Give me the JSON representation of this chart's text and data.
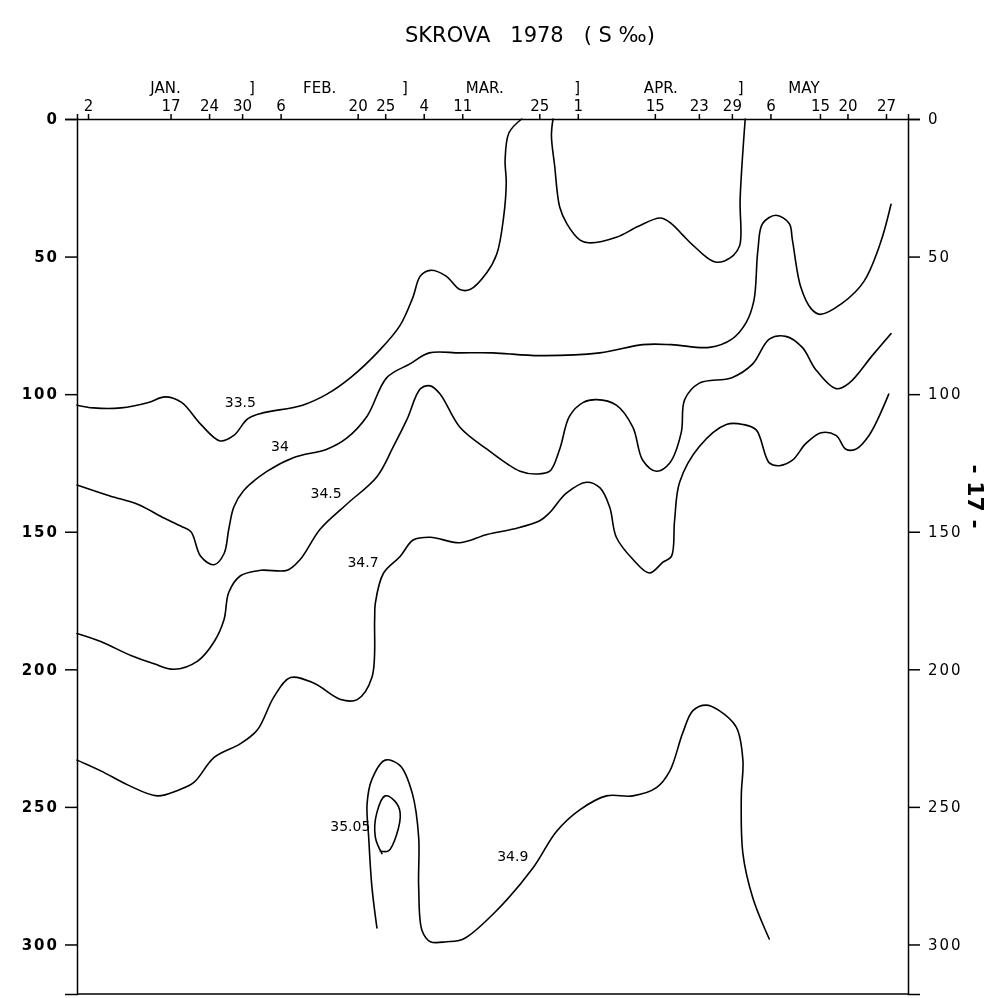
{
  "chart_data": {
    "type": "line",
    "title": "SKROVA   1978   ( S ‰)",
    "xlim": [
      "1977-12-31",
      "1978-05-31"
    ],
    "xticks": [
      {
        "value": "1978-01-02",
        "label": "2"
      },
      {
        "value": "1978-01-17",
        "label": "17"
      },
      {
        "value": "1978-01-24",
        "label": "24"
      },
      {
        "value": "1978-01-30",
        "label": "30"
      },
      {
        "value": "1978-02-06",
        "label": "6"
      },
      {
        "value": "1978-02-20",
        "label": "20"
      },
      {
        "value": "1978-02-25",
        "label": "25"
      },
      {
        "value": "1978-03-04",
        "label": "4"
      },
      {
        "value": "1978-03-11",
        "label": "11"
      },
      {
        "value": "1978-03-25",
        "label": "25"
      },
      {
        "value": "1978-04-01",
        "label": "1"
      },
      {
        "value": "1978-04-15",
        "label": "15"
      },
      {
        "value": "1978-04-23",
        "label": "23"
      },
      {
        "value": "1978-04-29",
        "label": "29"
      },
      {
        "value": "1978-05-06",
        "label": "6"
      },
      {
        "value": "1978-05-15",
        "label": "15"
      },
      {
        "value": "1978-05-20",
        "label": "20"
      },
      {
        "value": "1978-05-27",
        "label": "27"
      }
    ],
    "x2lim": [
      "1977-12-31",
      "1978-05-31"
    ],
    "x2ticks": [
      {
        "value": "1978-01-16",
        "label": "JAN."
      },
      {
        "value": "1978-01-31T17:00",
        "label": "]"
      },
      {
        "value": "1978-02-13",
        "label": "FEB."
      },
      {
        "value": "1978-02-28T12:00",
        "label": "]"
      },
      {
        "value": "1978-03-15",
        "label": "MAR."
      },
      {
        "value": "1978-03-31T19:00",
        "label": "]"
      },
      {
        "value": "1978-04-16",
        "label": "APR."
      },
      {
        "value": "1978-04-30T12:00",
        "label": "]"
      },
      {
        "value": "1978-05-12",
        "label": "MAY"
      }
    ],
    "ylim": [
      318,
      0
    ],
    "yticks": [
      0,
      50,
      100,
      150,
      200,
      250,
      300
    ],
    "y2lim": [
      318,
      0
    ],
    "y2ticks": [
      0,
      50,
      100,
      150,
      200,
      250,
      300
    ],
    "series": [
      {
        "color": "#000000",
        "x": [
          "1977-12-31",
          "1978-01-03",
          "1978-01-08",
          "1978-01-13",
          "1978-01-16",
          "1978-01-19",
          "1978-01-22T12:00",
          "1978-01-26",
          "1978-01-28T12:00",
          "1978-01-31",
          "1978-02-02T10:00",
          "1978-02-10",
          "1978-02-14T10:00",
          "1978-02-18T17:00",
          "1978-02-24",
          "1978-02-27T17:00",
          "1978-03-02",
          "1978-03-03T10:00",
          "1978-03-05T05:00",
          "1978-03-08",
          "1978-03-10T14:00",
          "1978-03-12T10:00",
          "1978-03-15T10:00",
          "1978-03-17T07:00",
          "1978-03-18T12:00",
          "1978-03-19",
          "1978-03-18T19:00",
          "1978-03-19T12:00",
          "1978-03-21T19:00"
        ],
        "values": [
          104,
          105,
          105,
          103,
          101,
          103,
          111,
          117,
          115,
          109,
          107,
          104,
          100,
          94,
          84,
          75,
          65,
          57,
          55,
          57,
          62,
          62,
          56,
          49,
          36,
          23,
          15,
          5,
          0
        ]
      },
      {
        "color": "#000000",
        "x": [
          "1978-03-27T12:00",
          "1978-03-27T05:00",
          "1978-03-27T19:00",
          "1978-03-28T17:00",
          "1978-03-30",
          "1978-04-01T10:00",
          "1978-04-03",
          "1978-04-08",
          "1978-04-12",
          "1978-04-16",
          "1978-04-18",
          "1978-04-20",
          "1978-04-22",
          "1978-04-26",
          "1978-04-29",
          "1978-04-30T10:00",
          "1978-04-30T12:00",
          "1978-05-01T10:00"
        ],
        "values": [
          0,
          6,
          17,
          32,
          38,
          44,
          45,
          43,
          39,
          36,
          38,
          42,
          46,
          52,
          50,
          46,
          29,
          0
        ]
      },
      {
        "color": "#000000",
        "x": [
          "1977-12-31",
          "1978-01-06",
          "1978-01-11",
          "1978-01-15T19:00",
          "1978-01-18T22:00",
          "1978-01-20T17:00",
          "1978-01-22T12:00",
          "1978-01-24T22:00",
          "1978-01-26T17:00",
          "1978-01-27T14:00",
          "1978-01-28T12:00",
          "1978-01-30T07:00",
          "1978-02-03T14:00",
          "1978-02-08T10:00",
          "1978-02-14T10:00",
          "1978-02-18",
          "1978-02-21T17:00",
          "1978-02-25T07:00",
          "1978-03-01T12:00",
          "1978-03-05",
          "1978-03-10T14:00",
          "1978-03-16T14:00",
          "1978-03-25",
          "1978-04-05",
          "1978-04-12T19:00",
          "1978-04-18",
          "1978-04-24T22:00",
          "1978-04-29",
          "1978-05-01T14:00",
          "1978-05-03",
          "1978-05-03T17:00",
          "1978-05-04T14:00",
          "1978-05-07",
          "1978-05-09T10:00",
          "1978-05-10",
          "1978-05-11T12:00",
          "1978-05-13T10:00",
          "1978-05-15",
          "1978-05-19",
          "1978-05-23",
          "1978-05-26",
          "1978-05-27T22:00"
        ],
        "values": [
          133,
          137,
          140,
          145,
          148,
          150,
          159,
          162,
          158,
          149,
          141,
          135,
          128,
          123,
          120,
          116,
          108,
          94,
          89,
          85,
          85,
          85,
          86,
          85,
          82,
          82,
          83,
          80,
          74,
          66,
          48,
          38,
          35,
          38,
          44,
          61,
          69,
          71,
          67,
          59,
          45,
          31
        ]
      },
      {
        "color": "#000000",
        "x": [
          "1977-12-31",
          "1978-01-04T10:00",
          "1978-01-09T19:00",
          "1978-01-14",
          "1978-01-17T14:00",
          "1978-01-21T22:00",
          "1978-01-24T22:00",
          "1978-01-26T17:00",
          "1978-01-27T14:00",
          "1978-01-29T17:00",
          "1978-02-02T10:00",
          "1978-02-07T05:00",
          "1978-02-09T14:00",
          "1978-02-13T05:00",
          "1978-02-18",
          "1978-02-23T12:00",
          "1978-02-26T12:00",
          "1978-03-01",
          "1978-03-03T10:00",
          "1978-03-05T05:00",
          "1978-03-07",
          "1978-03-10T14:00",
          "1978-03-15T12:00",
          "1978-03-21T12:00",
          "1978-03-24T12:00",
          "1978-03-26T22:00",
          "1978-03-28T17:00",
          "1978-03-30T12:00",
          "1978-04-02",
          "1978-04-04T10:00",
          "1978-04-08",
          "1978-04-11",
          "1978-04-12T19:00",
          "1978-04-15T07:00",
          "1978-04-17T17:00",
          "1978-04-19T19:00",
          "1978-04-20T10:00",
          "1978-04-23T02:00",
          "1978-04-29",
          "1978-05-02T19:00",
          "1978-05-05T19:00",
          "1978-05-08T19:00",
          "1978-05-11T19:00",
          "1978-05-14T05:00",
          "1978-05-17T22:00",
          "1978-05-20T07:00",
          "1978-05-24T12:00",
          "1978-05-27T22:00"
        ],
        "values": [
          187,
          190,
          195,
          198,
          200,
          197,
          190,
          182,
          172,
          166,
          164,
          164,
          160,
          149,
          140,
          130,
          119,
          109,
          98,
          97,
          100,
          112,
          120,
          128,
          129,
          128,
          120,
          108,
          103,
          102,
          104,
          112,
          124,
          128,
          125,
          114,
          102,
          96,
          94,
          89,
          80,
          79,
          83,
          91,
          98,
          96,
          86,
          78
        ]
      },
      {
        "color": "#000000",
        "x": [
          "1977-12-31",
          "1978-01-04T10:00",
          "1978-01-09T05:00",
          "1978-01-14T14:00",
          "1978-01-18T07:00",
          "1978-01-21T07:00",
          "1978-01-24T22:00",
          "1978-01-29T17:00",
          "1978-02-01T19:00",
          "1978-02-04T19:00",
          "1978-02-07T19:00",
          "1978-02-12",
          "1978-02-16T22:00",
          "1978-02-19T22:00",
          "1978-02-22T14:00",
          "1978-02-23T02:00",
          "1978-02-23T05:00",
          "1978-02-24T17:00",
          "1978-02-27T17:00",
          "1978-03-02T02:00",
          "1978-03-05T05:00",
          "1978-03-10T14:00",
          "1978-03-15T12:00",
          "1978-03-20T07:00",
          "1978-03-25T02:00",
          "1978-03-26T22:00",
          "1978-03-29T22:00",
          "1978-04-02T14:00",
          "1978-04-05",
          "1978-04-06T19:00",
          "1978-04-08",
          "1978-04-11",
          "1978-04-14",
          "1978-04-16T12:00",
          "1978-04-18",
          "1978-04-18T14:00",
          "1978-04-19T12:00",
          "1978-04-23T02:00",
          "1978-04-28",
          "1978-05-01",
          "1978-05-03T10:00",
          "1978-05-05T19:00",
          "1978-05-07T14:00",
          "1978-05-10",
          "1978-05-12T10:00",
          "1978-05-15T05:00",
          "1978-05-17T22:00",
          "1978-05-19T17:00",
          "1978-05-21T12:00",
          "1978-05-23T22:00",
          "1978-05-27T12:00"
        ],
        "values": [
          233,
          237,
          242,
          246,
          244,
          241,
          232,
          227,
          222,
          210,
          203,
          205,
          211,
          211,
          203,
          182,
          176,
          165,
          159,
          153,
          152,
          154,
          151,
          149,
          146,
          143,
          136,
          132,
          134,
          141,
          152,
          160,
          165,
          161,
          159,
          146,
          132,
          119,
          111,
          111,
          113,
          125,
          126,
          124,
          118,
          114,
          115,
          120,
          120,
          115,
          100
        ]
      },
      {
        "color": "#000000",
        "x": [
          "1978-02-23T12:00",
          "1978-02-22T14:00",
          "1978-02-22",
          "1978-02-21T17:00",
          "1978-02-22T14:00",
          "1978-02-25",
          "1978-02-27T17:00",
          "1978-03-01T22:00",
          "1978-03-03T02:00",
          "1978-03-03T02:00",
          "1978-03-03T17:00",
          "1978-03-05T05:00",
          "1978-03-08T05:00",
          "1978-03-11T05:00",
          "1978-03-16T14:00",
          "1978-03-23T22:00",
          "1978-03-28T02:00",
          "1978-04-01T10:00",
          "1978-04-06T05:00",
          "1978-04-11",
          "1978-04-15T07:00",
          "1978-04-17T17:00",
          "1978-04-20T02:00",
          "1978-04-21T22:00",
          "1978-04-24T07:00",
          "1978-04-26T17:00",
          "1978-04-29T19:00",
          "1978-05-01",
          "1978-04-30T17:00",
          "1978-05-01",
          "1978-05-02T19:00",
          "1978-05-05T19:00"
        ],
        "values": [
          294,
          279,
          261,
          249,
          240,
          233,
          235,
          245,
          261,
          279,
          295,
          299,
          299,
          298,
          289,
          272,
          259,
          251,
          246,
          246,
          243,
          237,
          223,
          215,
          213,
          215,
          221,
          233,
          246,
          267,
          283,
          298
        ]
      },
      {
        "color": "#000000",
        "x": [
          "1978-02-24T10:00",
          "1978-02-23T05:00",
          "1978-02-23T12:00",
          "1978-02-25",
          "1978-02-26T19:00",
          "1978-02-27T17:00",
          "1978-02-27T02:00",
          "1978-02-25T14:00",
          "1978-02-24T02:00"
        ],
        "values": [
          267,
          261,
          252,
          246,
          248,
          252,
          260,
          266,
          266
        ]
      }
    ],
    "annotations": [
      {
        "text": "33.5",
        "x": "1978-02-02T10:00",
        "y": 107
      },
      {
        "text": "34",
        "x": "1978-02-08T10:00",
        "y": 123
      },
      {
        "text": "34.5",
        "x": "1978-02-18",
        "y": 140
      },
      {
        "text": "34.7",
        "x": "1978-02-24T17:00",
        "y": 165
      },
      {
        "text": "34.9",
        "x": "1978-03-23T22:00",
        "y": 272
      },
      {
        "text": "35.05",
        "x": "1978-02-23T05:00",
        "y": 261
      },
      "- 17 -"
    ]
  }
}
